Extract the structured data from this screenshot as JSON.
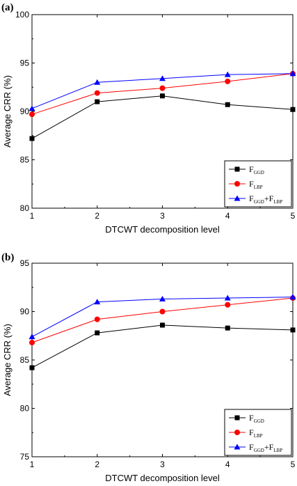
{
  "chart_data": [
    {
      "type": "line",
      "panel_label": "(a)",
      "x": [
        1,
        2,
        3,
        4,
        5
      ],
      "xlabel": "DTCWT decomposition level",
      "ylabel": "Average CRR (%)",
      "xlim": [
        1,
        5
      ],
      "ylim": [
        80,
        100
      ],
      "xticks": [
        "1",
        "2",
        "3",
        "4",
        "5"
      ],
      "yticks": [
        "80",
        "85",
        "90",
        "95",
        "100"
      ],
      "legend_position": "bottom-right",
      "series": [
        {
          "name": "F",
          "sub": "GGD",
          "color": "#000000",
          "marker": "square",
          "values": [
            87.2,
            91.0,
            91.6,
            90.7,
            90.2
          ]
        },
        {
          "name": "F",
          "sub": "LBP",
          "color": "#ff0000",
          "marker": "circle",
          "values": [
            89.7,
            91.9,
            92.4,
            93.1,
            93.9
          ]
        },
        {
          "name": "F",
          "sub": "GGD",
          "name2": "+F",
          "sub2": "LBP",
          "color": "#0000ff",
          "marker": "triangle",
          "values": [
            90.3,
            93.0,
            93.4,
            93.8,
            93.9
          ]
        }
      ]
    },
    {
      "type": "line",
      "panel_label": "(b)",
      "x": [
        1,
        2,
        3,
        4,
        5
      ],
      "xlabel": "DTCWT decomposition level",
      "ylabel": "Average CRR (%)",
      "xlim": [
        1,
        5
      ],
      "ylim": [
        75,
        95
      ],
      "xticks": [
        "1",
        "2",
        "3",
        "4",
        "5"
      ],
      "yticks": [
        "75",
        "80",
        "85",
        "90",
        "95"
      ],
      "legend_position": "bottom-right",
      "series": [
        {
          "name": "F",
          "sub": "GGD",
          "color": "#000000",
          "marker": "square",
          "values": [
            84.2,
            87.8,
            88.6,
            88.3,
            88.1
          ]
        },
        {
          "name": "F",
          "sub": "LBP",
          "color": "#ff0000",
          "marker": "circle",
          "values": [
            86.8,
            89.2,
            90.0,
            90.7,
            91.4
          ]
        },
        {
          "name": "F",
          "sub": "GGD",
          "name2": "+F",
          "sub2": "LBP",
          "color": "#0000ff",
          "marker": "triangle",
          "values": [
            87.4,
            91.0,
            91.3,
            91.4,
            91.5
          ]
        }
      ]
    }
  ]
}
